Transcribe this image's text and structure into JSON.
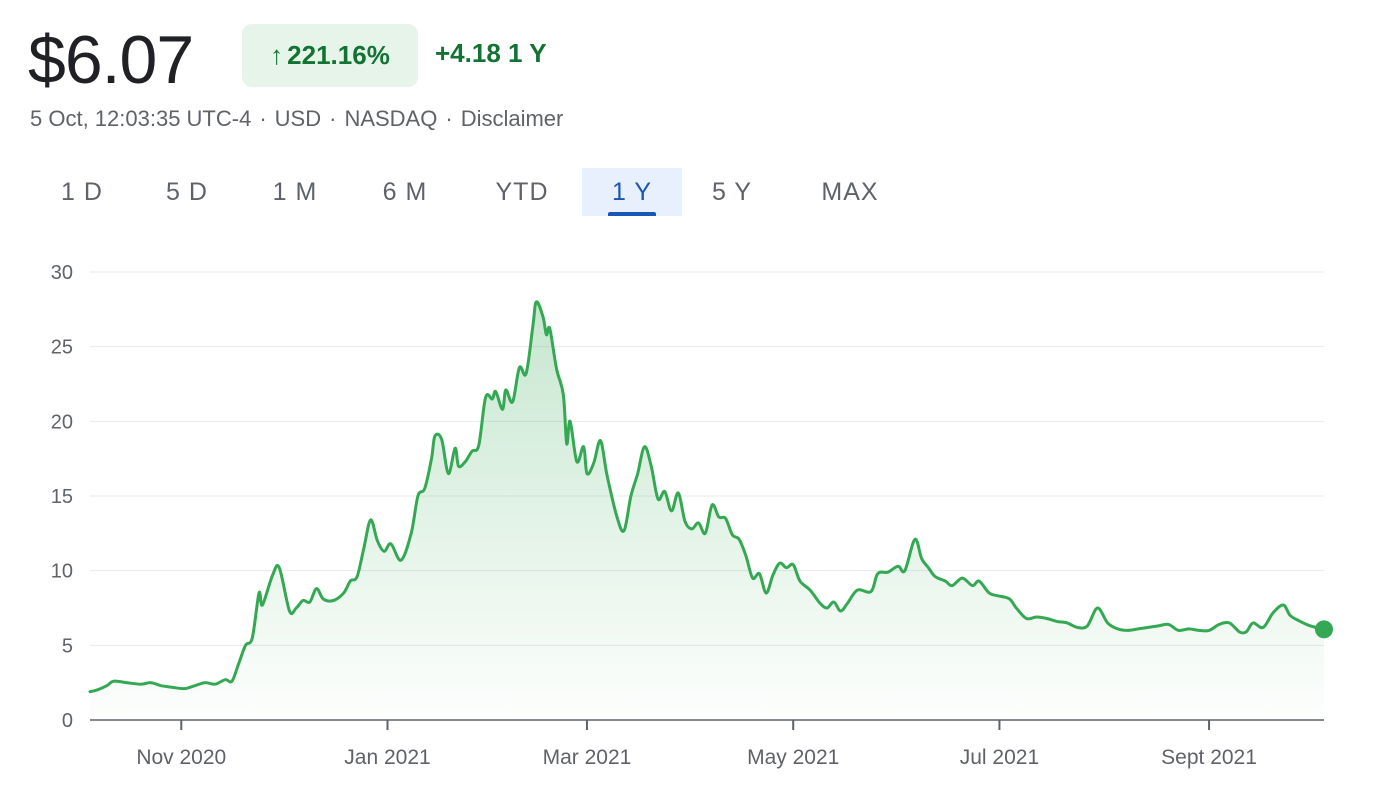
{
  "header": {
    "price": "$6.07",
    "arrow_icon": "↑",
    "change_pct": "221.16%",
    "change_abs": "+4.18",
    "period": "1 Y",
    "meta": [
      "5 Oct, 12:03:35 UTC-4",
      "USD",
      "NASDAQ",
      "Disclaimer"
    ],
    "colors": {
      "positive": "#137333",
      "positive_bg": "#e6f4ea",
      "line": "#34a853",
      "active_tab": "#1a56b6"
    }
  },
  "tabs": [
    {
      "label": "1 D",
      "active": false
    },
    {
      "label": "5 D",
      "active": false
    },
    {
      "label": "1 M",
      "active": false
    },
    {
      "label": "6 M",
      "active": false
    },
    {
      "label": "YTD",
      "active": false
    },
    {
      "label": "1 Y",
      "active": true
    },
    {
      "label": "5 Y",
      "active": false
    },
    {
      "label": "MAX",
      "active": false
    }
  ],
  "chart_data": {
    "type": "area",
    "title": "",
    "xlabel": "",
    "ylabel": "",
    "ylim": [
      0,
      30
    ],
    "yticks": [
      0,
      5,
      10,
      15,
      20,
      25,
      30
    ],
    "xlim": [
      "2020-10-05",
      "2021-10-05"
    ],
    "xticks": [
      {
        "date": "2020-11-01",
        "label": "Nov 2020"
      },
      {
        "date": "2021-01-01",
        "label": "Jan 2021"
      },
      {
        "date": "2021-03-01",
        "label": "Mar 2021"
      },
      {
        "date": "2021-05-01",
        "label": "May 2021"
      },
      {
        "date": "2021-07-01",
        "label": "Jul 2021"
      },
      {
        "date": "2021-09-01",
        "label": "Sept 2021"
      }
    ],
    "grid": true,
    "series": [
      {
        "points": [
          [
            "2020-10-05",
            1.9
          ],
          [
            "2020-10-07",
            2.0
          ],
          [
            "2020-10-10",
            2.3
          ],
          [
            "2020-10-12",
            2.6
          ],
          [
            "2020-10-16",
            2.5
          ],
          [
            "2020-10-20",
            2.4
          ],
          [
            "2020-10-23",
            2.5
          ],
          [
            "2020-10-26",
            2.3
          ],
          [
            "2020-10-29",
            2.2
          ],
          [
            "2020-11-02",
            2.1
          ],
          [
            "2020-11-05",
            2.3
          ],
          [
            "2020-11-08",
            2.5
          ],
          [
            "2020-11-11",
            2.4
          ],
          [
            "2020-11-14",
            2.7
          ],
          [
            "2020-11-16",
            2.6
          ],
          [
            "2020-11-18",
            3.8
          ],
          [
            "2020-11-20",
            5.0
          ],
          [
            "2020-11-22",
            5.5
          ],
          [
            "2020-11-24",
            8.5
          ],
          [
            "2020-11-25",
            7.7
          ],
          [
            "2020-11-28",
            9.7
          ],
          [
            "2020-11-30",
            10.2
          ],
          [
            "2020-12-03",
            7.3
          ],
          [
            "2020-12-05",
            7.5
          ],
          [
            "2020-12-07",
            8.0
          ],
          [
            "2020-12-09",
            7.9
          ],
          [
            "2020-12-11",
            8.8
          ],
          [
            "2020-12-13",
            8.1
          ],
          [
            "2020-12-16",
            8.0
          ],
          [
            "2020-12-19",
            8.5
          ],
          [
            "2020-12-21",
            9.3
          ],
          [
            "2020-12-23",
            9.6
          ],
          [
            "2020-12-25",
            11.5
          ],
          [
            "2020-12-27",
            13.4
          ],
          [
            "2020-12-29",
            12.0
          ],
          [
            "2020-12-31",
            11.3
          ],
          [
            "2021-01-02",
            11.8
          ],
          [
            "2021-01-05",
            10.7
          ],
          [
            "2021-01-08",
            12.5
          ],
          [
            "2021-01-10",
            15.0
          ],
          [
            "2021-01-12",
            15.5
          ],
          [
            "2021-01-14",
            17.5
          ],
          [
            "2021-01-15",
            19.0
          ],
          [
            "2021-01-17",
            18.8
          ],
          [
            "2021-01-19",
            16.5
          ],
          [
            "2021-01-21",
            18.2
          ],
          [
            "2021-01-22",
            17.0
          ],
          [
            "2021-01-24",
            17.3
          ],
          [
            "2021-01-26",
            18.0
          ],
          [
            "2021-01-28",
            18.4
          ],
          [
            "2021-01-30",
            21.6
          ],
          [
            "2021-02-01",
            21.5
          ],
          [
            "2021-02-02",
            22.0
          ],
          [
            "2021-02-04",
            20.8
          ],
          [
            "2021-02-05",
            22.1
          ],
          [
            "2021-02-07",
            21.3
          ],
          [
            "2021-02-09",
            23.6
          ],
          [
            "2021-02-11",
            23.2
          ],
          [
            "2021-02-13",
            26.4
          ],
          [
            "2021-02-14",
            28.0
          ],
          [
            "2021-02-16",
            27.0
          ],
          [
            "2021-02-17",
            25.8
          ],
          [
            "2021-02-18",
            26.2
          ],
          [
            "2021-02-20",
            23.5
          ],
          [
            "2021-02-22",
            21.8
          ],
          [
            "2021-02-23",
            18.5
          ],
          [
            "2021-02-24",
            20.0
          ],
          [
            "2021-02-26",
            17.3
          ],
          [
            "2021-02-28",
            18.3
          ],
          [
            "2021-03-01",
            16.5
          ],
          [
            "2021-03-03",
            17.2
          ],
          [
            "2021-03-05",
            18.7
          ],
          [
            "2021-03-07",
            16.3
          ],
          [
            "2021-03-10",
            13.5
          ],
          [
            "2021-03-12",
            12.7
          ],
          [
            "2021-03-14",
            15.0
          ],
          [
            "2021-03-16",
            16.5
          ],
          [
            "2021-03-18",
            18.3
          ],
          [
            "2021-03-20",
            17.0
          ],
          [
            "2021-03-22",
            14.8
          ],
          [
            "2021-03-24",
            15.3
          ],
          [
            "2021-03-26",
            14.0
          ],
          [
            "2021-03-28",
            15.2
          ],
          [
            "2021-03-30",
            13.3
          ],
          [
            "2021-04-01",
            12.8
          ],
          [
            "2021-04-03",
            13.2
          ],
          [
            "2021-04-05",
            12.5
          ],
          [
            "2021-04-07",
            14.4
          ],
          [
            "2021-04-09",
            13.6
          ],
          [
            "2021-04-11",
            13.5
          ],
          [
            "2021-04-13",
            12.4
          ],
          [
            "2021-04-15",
            12.1
          ],
          [
            "2021-04-17",
            11.0
          ],
          [
            "2021-04-19",
            9.5
          ],
          [
            "2021-04-21",
            9.8
          ],
          [
            "2021-04-23",
            8.5
          ],
          [
            "2021-04-25",
            9.7
          ],
          [
            "2021-04-27",
            10.5
          ],
          [
            "2021-04-29",
            10.2
          ],
          [
            "2021-05-01",
            10.4
          ],
          [
            "2021-05-03",
            9.3
          ],
          [
            "2021-05-06",
            8.7
          ],
          [
            "2021-05-09",
            7.8
          ],
          [
            "2021-05-11",
            7.5
          ],
          [
            "2021-05-13",
            7.9
          ],
          [
            "2021-05-15",
            7.3
          ],
          [
            "2021-05-17",
            7.8
          ],
          [
            "2021-05-20",
            8.7
          ],
          [
            "2021-05-24",
            8.6
          ],
          [
            "2021-05-26",
            9.8
          ],
          [
            "2021-05-29",
            9.9
          ],
          [
            "2021-06-01",
            10.3
          ],
          [
            "2021-06-03",
            10.0
          ],
          [
            "2021-06-06",
            12.1
          ],
          [
            "2021-06-08",
            10.8
          ],
          [
            "2021-06-10",
            10.2
          ],
          [
            "2021-06-12",
            9.6
          ],
          [
            "2021-06-15",
            9.3
          ],
          [
            "2021-06-17",
            9.0
          ],
          [
            "2021-06-20",
            9.5
          ],
          [
            "2021-06-23",
            9.0
          ],
          [
            "2021-06-25",
            9.3
          ],
          [
            "2021-06-28",
            8.5
          ],
          [
            "2021-07-01",
            8.3
          ],
          [
            "2021-07-04",
            8.1
          ],
          [
            "2021-07-06",
            7.5
          ],
          [
            "2021-07-09",
            6.8
          ],
          [
            "2021-07-12",
            6.9
          ],
          [
            "2021-07-15",
            6.8
          ],
          [
            "2021-07-18",
            6.6
          ],
          [
            "2021-07-21",
            6.5
          ],
          [
            "2021-07-24",
            6.2
          ],
          [
            "2021-07-27",
            6.3
          ],
          [
            "2021-07-30",
            7.5
          ],
          [
            "2021-08-02",
            6.5
          ],
          [
            "2021-08-05",
            6.1
          ],
          [
            "2021-08-08",
            6.0
          ],
          [
            "2021-08-11",
            6.1
          ],
          [
            "2021-08-14",
            6.2
          ],
          [
            "2021-08-17",
            6.3
          ],
          [
            "2021-08-20",
            6.4
          ],
          [
            "2021-08-23",
            6.0
          ],
          [
            "2021-08-26",
            6.1
          ],
          [
            "2021-08-29",
            6.0
          ],
          [
            "2021-09-01",
            6.0
          ],
          [
            "2021-09-04",
            6.4
          ],
          [
            "2021-09-07",
            6.5
          ],
          [
            "2021-09-10",
            5.9
          ],
          [
            "2021-09-12",
            5.9
          ],
          [
            "2021-09-14",
            6.5
          ],
          [
            "2021-09-17",
            6.2
          ],
          [
            "2021-09-20",
            7.2
          ],
          [
            "2021-09-23",
            7.7
          ],
          [
            "2021-09-25",
            7.0
          ],
          [
            "2021-09-28",
            6.6
          ],
          [
            "2021-10-01",
            6.3
          ],
          [
            "2021-10-05",
            6.07
          ]
        ]
      }
    ]
  }
}
